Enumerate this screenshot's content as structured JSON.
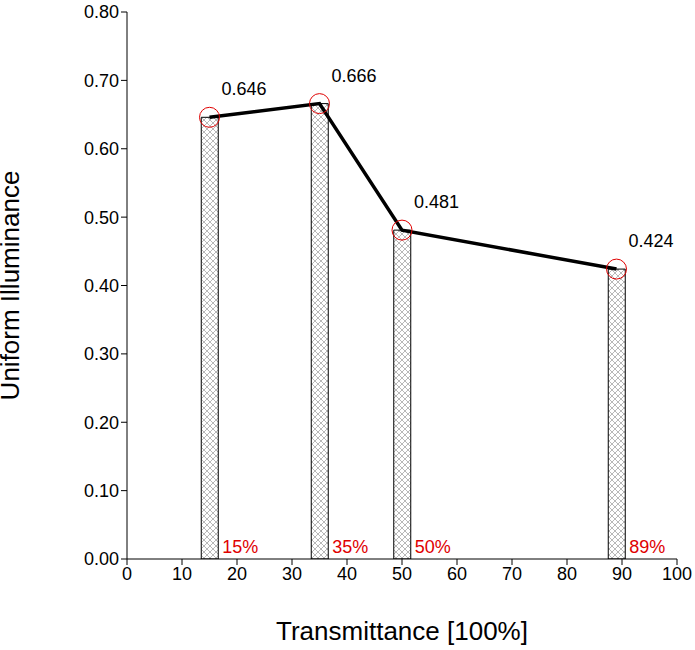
{
  "chart_data": {
    "type": "bar",
    "x_label": "Transmittance [100%]",
    "y_label": "Uniform Illuminance",
    "x": [
      15,
      35,
      50,
      89
    ],
    "x_labels": [
      "15%",
      "35%",
      "50%",
      "89%"
    ],
    "values": [
      0.646,
      0.666,
      0.481,
      0.424
    ],
    "color": "#000000",
    "marker": "circle",
    "line_style": "solid",
    "data_labels": true,
    "xlim": [
      0,
      100
    ],
    "xticks": [
      0,
      10,
      20,
      30,
      40,
      50,
      60,
      70,
      80,
      90,
      100
    ],
    "ylim": [
      0,
      0.8
    ],
    "yticks": [
      {
        "value": 0,
        "label": "0.00"
      },
      {
        "value": 0.1,
        "label": "0.10"
      },
      {
        "value": 0.2,
        "label": "0.20"
      },
      {
        "value": 0.3,
        "label": "0.30"
      },
      {
        "value": 0.4,
        "label": "0.40"
      },
      {
        "value": 0.5,
        "label": "0.50"
      },
      {
        "value": 0.6,
        "label": "0.60"
      },
      {
        "value": 0.7,
        "label": "0.70"
      },
      {
        "value": 0.8,
        "label": "0.80"
      }
    ]
  }
}
